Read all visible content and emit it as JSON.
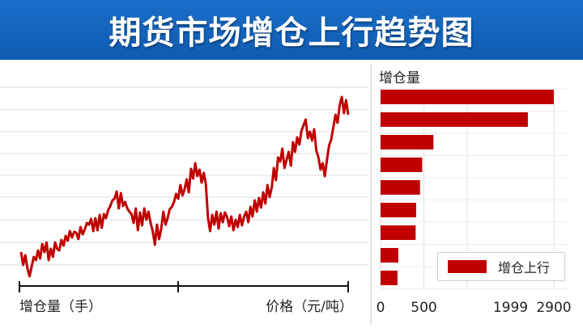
{
  "banner": {
    "title": "期货市场增仓上行趋势图"
  },
  "colors": {
    "banner": "#1a6fc9",
    "series": "#c00000",
    "grid": "#dddddd"
  },
  "chart_data": [
    {
      "type": "line",
      "title": "",
      "xlabel_left": "增仓量（手）",
      "xlabel_right": "价格（元/吨）",
      "ylabel": "",
      "grid": true,
      "series": [
        {
          "values": [
            312,
            328,
            316,
            332,
            342,
            330,
            318,
            322,
            310,
            320,
            302,
            312,
            300,
            322,
            308,
            318,
            300,
            308,
            310,
            297,
            304,
            292,
            298,
            286,
            294,
            287,
            288,
            296,
            281,
            290,
            284,
            276,
            278,
            271,
            286,
            270,
            285,
            266,
            282,
            265,
            270,
            260,
            255,
            248,
            246,
            237,
            258,
            239,
            255,
            250,
            258,
            262,
            265,
            276,
            258,
            285,
            263,
            279,
            258,
            272,
            262,
            276,
            286,
            303,
            278,
            296,
            283,
            262,
            278,
            270,
            259,
            256,
            250,
            240,
            246,
            229,
            242,
            234,
            222,
            238,
            209,
            221,
            202,
            218,
            210,
            226,
            214,
            228,
            270,
            286,
            266,
            278,
            262,
            283,
            264,
            275,
            263,
            269,
            280,
            268,
            285,
            272,
            281,
            266,
            279,
            268,
            262,
            275,
            256,
            268,
            248,
            262,
            245,
            257,
            238,
            252,
            229,
            244,
            232,
            208,
            223,
            195,
            200,
            184,
            208,
            198,
            188,
            205,
            176,
            188,
            170,
            179,
            162,
            155,
            148,
            171,
            163,
            174,
            160,
            186,
            195,
            210,
            202,
            218,
            198,
            180,
            173,
            158,
            142,
            152,
            130,
            120,
            140,
            124,
            142
          ]
        }
      ]
    },
    {
      "type": "bar",
      "orientation": "horizontal",
      "title": "",
      "ylabel": "增仓量",
      "xlim": [
        0,
        2000
      ],
      "ticks": [
        "0",
        "500",
        "1999",
        "2900"
      ],
      "legend": "增仓上行",
      "legend_position": "bottom-right",
      "values": [
        2000,
        1700,
        610,
        480,
        455,
        410,
        405,
        205,
        195
      ]
    }
  ]
}
